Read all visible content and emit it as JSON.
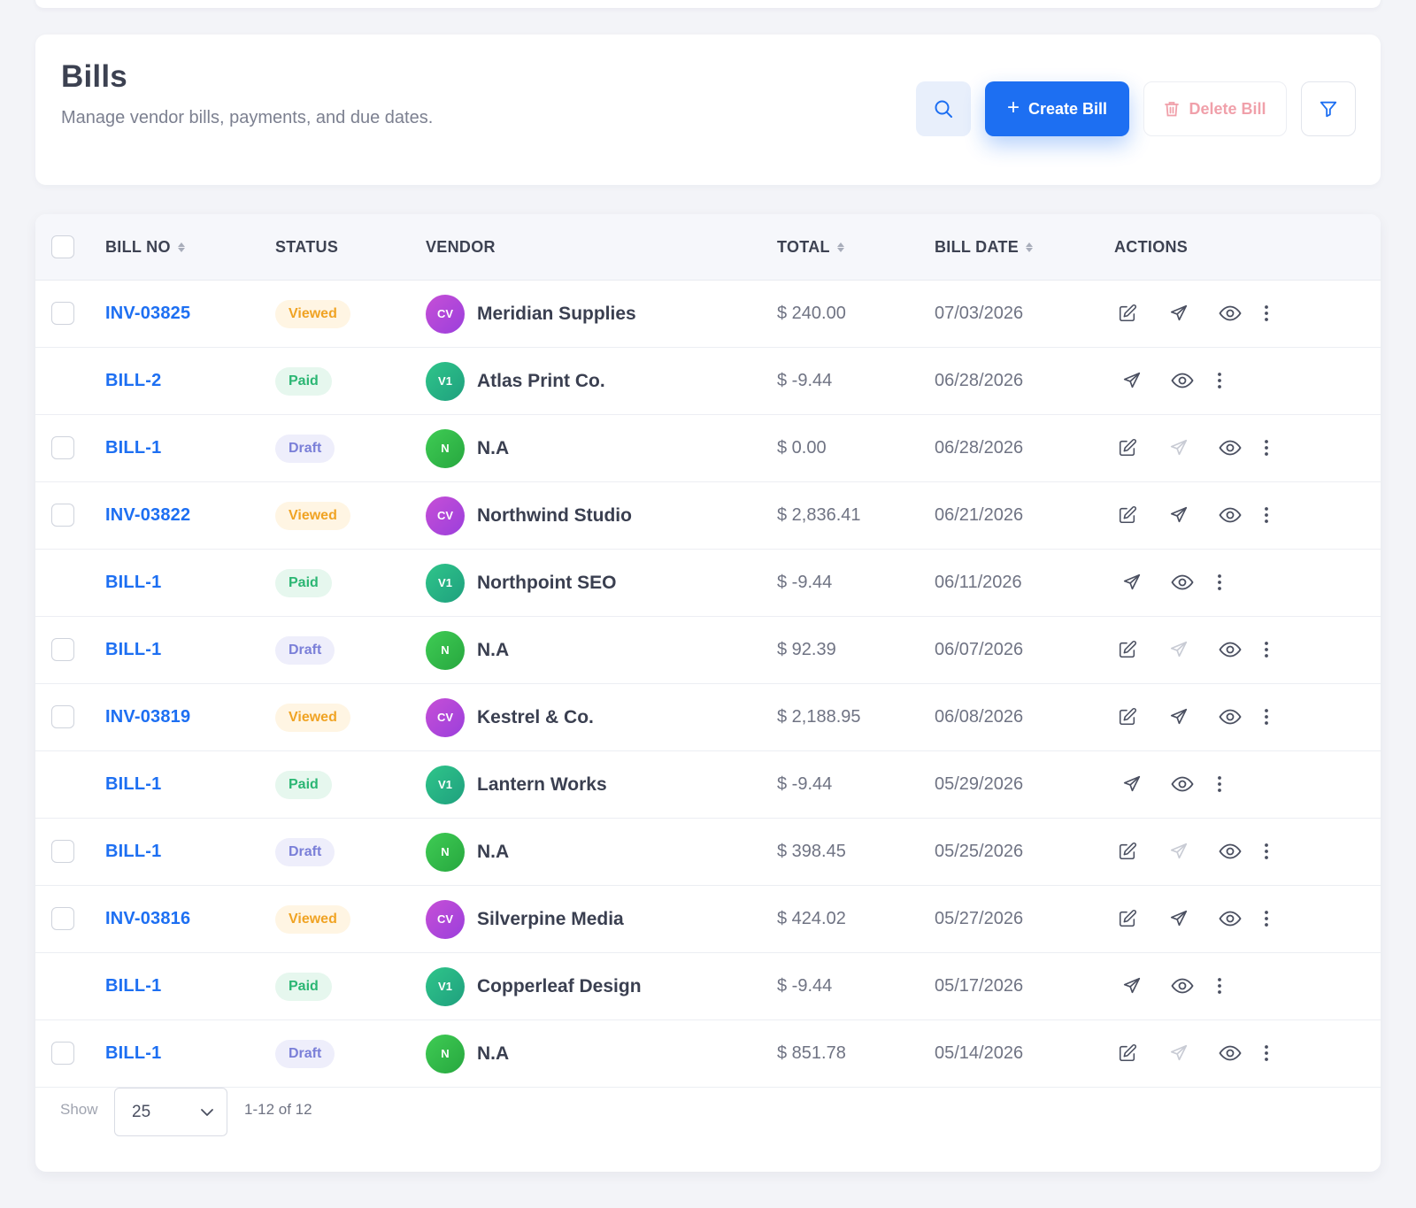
{
  "header": {
    "title": "Bills",
    "subtitle": "Manage vendor bills, payments, and due dates.",
    "create_label": "Create Bill",
    "delete_label": "Delete Bill"
  },
  "table": {
    "columns": {
      "bill_no": "BILL NO",
      "status": "STATUS",
      "vendor": "VENDOR",
      "total": "TOTAL",
      "bill_date": "BILL DATE",
      "actions": "ACTIONS"
    },
    "rows": [
      {
        "bill_no": "INV-03825",
        "status": "Viewed",
        "avatar": "CV",
        "vendor": "Meridian Supplies",
        "total": "$ 240.00",
        "date": "07/03/2026"
      },
      {
        "bill_no": "BILL-2",
        "status": "Paid",
        "avatar": "V1",
        "vendor": "Atlas Print Co.",
        "total": "$ -9.44",
        "date": "06/28/2026"
      },
      {
        "bill_no": "BILL-1",
        "status": "Draft",
        "avatar": "N",
        "vendor": "N.A",
        "total": "$ 0.00",
        "date": "06/28/2026"
      },
      {
        "bill_no": "INV-03822",
        "status": "Viewed",
        "avatar": "CV",
        "vendor": "Northwind Studio",
        "total": "$ 2,836.41",
        "date": "06/21/2026"
      },
      {
        "bill_no": "BILL-1",
        "status": "Paid",
        "avatar": "V1",
        "vendor": "Northpoint SEO",
        "total": "$ -9.44",
        "date": "06/11/2026"
      },
      {
        "bill_no": "BILL-1",
        "status": "Draft",
        "avatar": "N",
        "vendor": "N.A",
        "total": "$ 92.39",
        "date": "06/07/2026"
      },
      {
        "bill_no": "INV-03819",
        "status": "Viewed",
        "avatar": "CV",
        "vendor": "Kestrel & Co.",
        "total": "$ 2,188.95",
        "date": "06/08/2026"
      },
      {
        "bill_no": "BILL-1",
        "status": "Paid",
        "avatar": "V1",
        "vendor": "Lantern Works",
        "total": "$ -9.44",
        "date": "05/29/2026"
      },
      {
        "bill_no": "BILL-1",
        "status": "Draft",
        "avatar": "N",
        "vendor": "N.A",
        "total": "$ 398.45",
        "date": "05/25/2026"
      },
      {
        "bill_no": "INV-03816",
        "status": "Viewed",
        "avatar": "CV",
        "vendor": "Silverpine Media",
        "total": "$ 424.02",
        "date": "05/27/2026"
      },
      {
        "bill_no": "BILL-1",
        "status": "Paid",
        "avatar": "V1",
        "vendor": "Copperleaf Design",
        "total": "$ -9.44",
        "date": "05/17/2026"
      },
      {
        "bill_no": "BILL-1",
        "status": "Draft",
        "avatar": "N",
        "vendor": "N.A",
        "total": "$ 851.78",
        "date": "05/14/2026"
      }
    ]
  },
  "footer": {
    "show_label": "Show",
    "page_size": "25",
    "range": "1-12 of 12"
  },
  "colors": {
    "primary": "#1d6ff2",
    "viewed": "#f0a323",
    "paid": "#2bb673",
    "draft": "#7a7fd8",
    "danger": "#f0a0aa"
  },
  "icons": [
    "search-icon",
    "plus-icon",
    "trash-icon",
    "filter-icon",
    "edit-icon",
    "send-icon",
    "eye-icon",
    "more-vertical-icon",
    "chevron-down-icon"
  ]
}
